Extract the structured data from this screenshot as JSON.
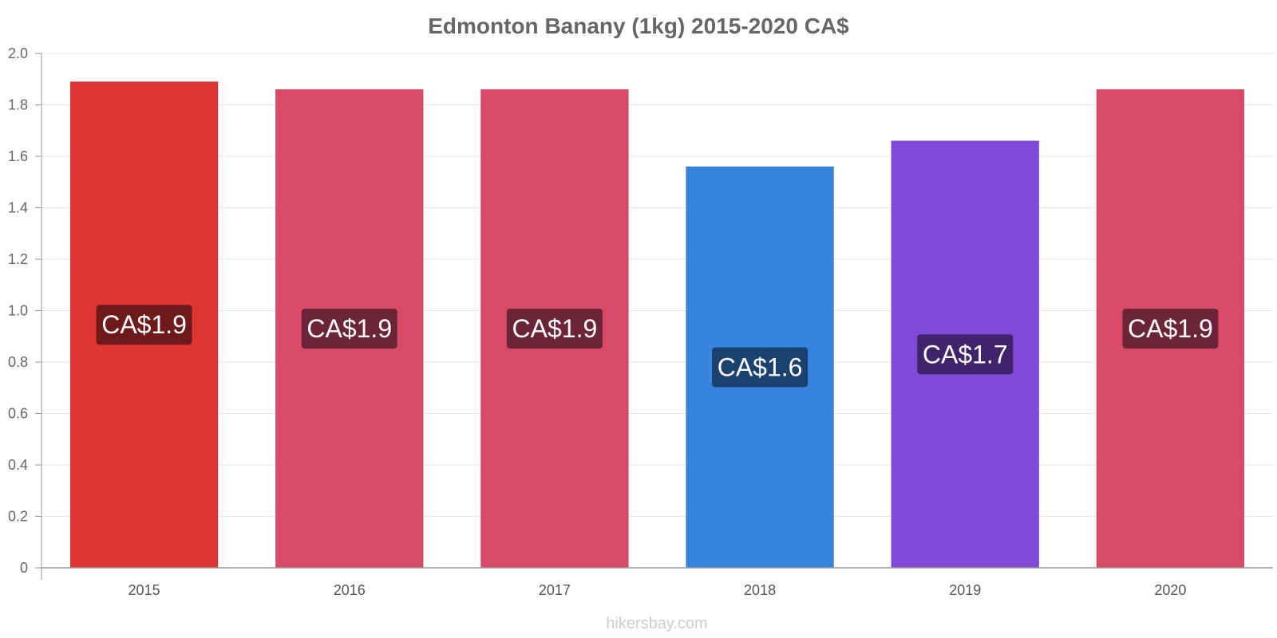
{
  "chart_data": {
    "type": "bar",
    "title": "Edmonton Banany (1kg) 2015-2020 CA$",
    "xlabel": "",
    "ylabel": "",
    "categories": [
      "2015",
      "2016",
      "2017",
      "2018",
      "2019",
      "2020"
    ],
    "values": [
      1.89,
      1.86,
      1.86,
      1.56,
      1.66,
      1.86
    ],
    "data_labels": [
      "CA$1.9",
      "CA$1.9",
      "CA$1.9",
      "CA$1.6",
      "CA$1.7",
      "CA$1.9"
    ],
    "bar_colors": [
      "#e03535",
      "#d84a68",
      "#d84a68",
      "#3784df",
      "#8049d8",
      "#d84a68"
    ],
    "label_bg_colors": [
      "#6e1a1a",
      "#6b2438",
      "#6b2438",
      "#1b416e",
      "#3f246b",
      "#6b2438"
    ],
    "ylim": [
      0,
      2.0
    ],
    "yticks": [
      "0",
      "0.2",
      "0.4",
      "0.6",
      "0.8",
      "1.0",
      "1.2",
      "1.4",
      "1.6",
      "1.8",
      "2.0"
    ],
    "grid": true,
    "legend": "none"
  },
  "watermark": "hikersbay.com",
  "colors": {
    "title": "#666666",
    "grid": "#e6e6e6",
    "axis": "#999999"
  }
}
